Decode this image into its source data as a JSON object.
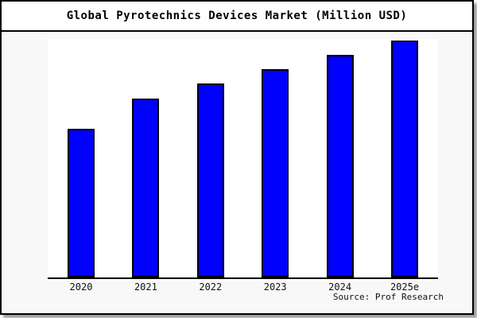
{
  "title": "Global Pyrotechnics Devices Market (Million USD)",
  "source": "Source: Prof Research",
  "colors": {
    "bar_fill": "#0000ff",
    "bar_border": "#000000",
    "background": "#f8f8f8",
    "plot_background": "#ffffff",
    "frame_border": "#000000"
  },
  "chart_data": {
    "type": "bar",
    "title": "Global Pyrotechnics Devices Market (Million USD)",
    "categories": [
      "2020",
      "2021",
      "2022",
      "2023",
      "2024",
      "2025e"
    ],
    "values": [
      62.5,
      75.0,
      81.3,
      87.3,
      93.3,
      99.3
    ],
    "values_unit": "percent of plot height (no numeric y-axis shown in chart)",
    "xlabel": "",
    "ylabel": "",
    "ylim": [
      0,
      100
    ],
    "grid": false,
    "legend": null,
    "annotations": [
      "Source: Prof Research"
    ]
  }
}
